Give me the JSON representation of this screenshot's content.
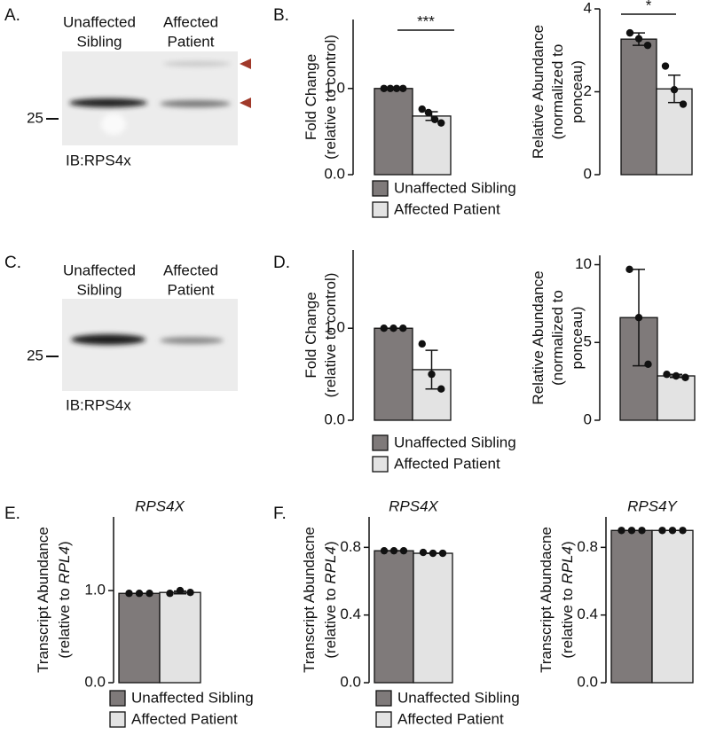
{
  "panel_labels": [
    "A.",
    "B.",
    "C.",
    "D.",
    "E.",
    "F."
  ],
  "blots": [
    {
      "lanes": [
        [
          "Unaffected",
          "Sibling"
        ],
        [
          "Affected",
          "Patient"
        ]
      ],
      "marker": "25",
      "antibody": "IB:RPS4x"
    },
    {
      "lanes": [
        [
          "Unaffected",
          "Sibling"
        ],
        [
          "Affected",
          "Patient"
        ]
      ],
      "marker": "25",
      "antibody": "IB:RPS4x"
    }
  ],
  "chart_data": [
    {
      "type": "bar",
      "ylabel": [
        [
          {
            "text": "Fold Change"
          }
        ],
        [
          {
            "text": "(relative to control)"
          }
        ]
      ],
      "ylim": [
        0,
        1.8
      ],
      "yticks": [
        {
          "value": 0,
          "label": "0.0"
        },
        {
          "value": 1,
          "label": "1.0"
        }
      ],
      "significance": "***",
      "series": [
        {
          "name": "Unaffected Sibling",
          "color": "#7f7a7a",
          "values": [
            1.0
          ],
          "errors": [
            0
          ],
          "points": [
            1,
            1,
            1,
            1
          ]
        },
        {
          "name": "Affected Patient",
          "color": "#e3e3e3",
          "values": [
            0.68
          ],
          "errors": [
            0.05
          ],
          "points": [
            0.76,
            0.72,
            0.64,
            0.6
          ]
        }
      ]
    },
    {
      "type": "bar",
      "ylabel": [
        [
          {
            "text": "Relative Abundance"
          }
        ],
        [
          {
            "text": "(normalized to"
          }
        ],
        [
          {
            "text": "ponceau)"
          }
        ]
      ],
      "ylim": [
        0,
        4
      ],
      "yticks": [
        0,
        2,
        4
      ],
      "significance": "*",
      "series": [
        {
          "color": "#7f7a7a",
          "values": [
            3.27
          ],
          "errors": [
            0.15
          ],
          "points": [
            3.42,
            3.28,
            3.12
          ]
        },
        {
          "color": "#e3e3e3",
          "values": [
            2.07
          ],
          "errors": [
            0.33
          ],
          "points": [
            2.62,
            2.05,
            1.7
          ]
        }
      ]
    },
    {
      "type": "bar",
      "ylabel": [
        [
          {
            "text": "Fold Change"
          }
        ],
        [
          {
            "text": "(relative to control)"
          }
        ]
      ],
      "ylim": [
        0,
        1.85
      ],
      "yticks": [
        {
          "value": 0,
          "label": "0.0"
        },
        {
          "value": 1,
          "label": "1.0"
        }
      ],
      "series": [
        {
          "name": "Unaffected Sibling",
          "color": "#7f7a7a",
          "values": [
            1.0
          ],
          "errors": [
            0
          ],
          "points": [
            1,
            1,
            1
          ]
        },
        {
          "name": "Affected Patient",
          "color": "#e3e3e3",
          "values": [
            0.55
          ],
          "errors": [
            0.21
          ],
          "points": [
            0.83,
            0.5,
            0.34
          ]
        }
      ]
    },
    {
      "type": "bar",
      "ylabel": [
        [
          {
            "text": "Relative Abundance"
          }
        ],
        [
          {
            "text": "(normalized to"
          }
        ],
        [
          {
            "text": "ponceau)"
          }
        ]
      ],
      "ylim": [
        0,
        10.6
      ],
      "yticks": [
        0,
        5,
        10
      ],
      "series": [
        {
          "color": "#7f7a7a",
          "values": [
            6.6
          ],
          "errors": [
            3.1
          ],
          "points": [
            9.7,
            6.6,
            3.6
          ]
        },
        {
          "color": "#e3e3e3",
          "values": [
            2.85
          ],
          "errors": [
            0.1
          ],
          "points": [
            2.95,
            2.85,
            2.75
          ]
        }
      ]
    },
    {
      "type": "bar",
      "title": "RPS4X",
      "ylabel": [
        [
          {
            "text": "Transcript Abundance"
          }
        ],
        [
          {
            "text": "(relative to "
          },
          {
            "text": "RPL4",
            "italic": true
          },
          {
            "text": ")"
          }
        ]
      ],
      "ylim": [
        0,
        1.8
      ],
      "yticks": [
        {
          "value": 0,
          "label": "0.0"
        },
        {
          "value": 1,
          "label": "1.0"
        }
      ],
      "series": [
        {
          "name": "Unaffected Sibling",
          "color": "#7f7a7a",
          "values": [
            0.97
          ],
          "errors": [
            0
          ],
          "points": [
            0.97,
            0.97,
            0.97
          ]
        },
        {
          "name": "Affected Patient",
          "color": "#e3e3e3",
          "values": [
            0.98
          ],
          "errors": [
            0.015
          ],
          "points": [
            0.97,
            1.0,
            0.98
          ]
        }
      ]
    },
    {
      "type": "bar",
      "title": "RPS4X",
      "ylabel": [
        [
          {
            "text": "Transcript Abundacne"
          }
        ],
        [
          {
            "text": "(relative to "
          },
          {
            "text": "RPL4",
            "italic": true
          },
          {
            "text": ")"
          }
        ]
      ],
      "ylim": [
        0,
        0.98
      ],
      "yticks": [
        {
          "value": 0,
          "label": "0.0"
        },
        0.4,
        0.8
      ],
      "series": [
        {
          "name": "Unaffected Sibling",
          "color": "#7f7a7a",
          "values": [
            0.78
          ],
          "errors": [
            0
          ],
          "points": [
            0.78,
            0.78,
            0.78
          ]
        },
        {
          "name": "Affected Patient",
          "color": "#e3e3e3",
          "values": [
            0.765
          ],
          "errors": [
            0
          ],
          "points": [
            0.77,
            0.765,
            0.765
          ]
        }
      ]
    },
    {
      "type": "bar",
      "title": "RPS4Y",
      "ylabel": [
        [
          {
            "text": "Transcript Abundacne"
          }
        ],
        [
          {
            "text": "(relative to "
          },
          {
            "text": "RPL4",
            "italic": true
          },
          {
            "text": ")"
          }
        ]
      ],
      "ylim": [
        0,
        0.98
      ],
      "yticks": [
        {
          "value": 0,
          "label": "0.0"
        },
        0.4,
        0.8
      ],
      "series": [
        {
          "color": "#7f7a7a",
          "values": [
            0.9
          ],
          "errors": [
            0
          ],
          "points": [
            0.9,
            0.9,
            0.9
          ]
        },
        {
          "color": "#e3e3e3",
          "values": [
            0.9
          ],
          "errors": [
            0
          ],
          "points": [
            0.9,
            0.9,
            0.9
          ]
        }
      ]
    }
  ]
}
